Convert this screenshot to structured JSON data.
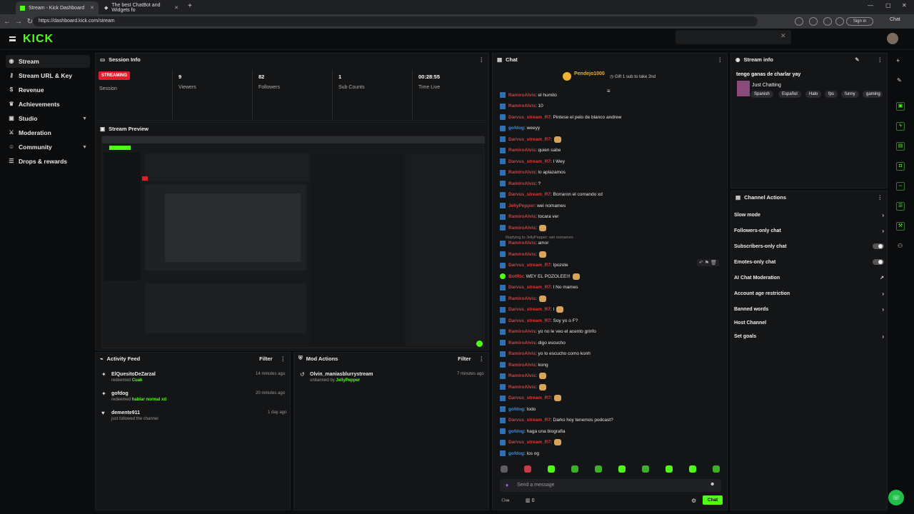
{
  "browser": {
    "tabs": [
      {
        "label": "Stream - Kick Dashboard"
      },
      {
        "label": "The best ChatBot and Widgets fo"
      }
    ],
    "url": "https://dashboard.kick.com/stream",
    "signin": "Sign in",
    "chat_btn": "Chat"
  },
  "sidebar": {
    "items": [
      {
        "label": "Stream",
        "icon": "cast-icon"
      },
      {
        "label": "Stream URL & Key",
        "icon": "key-icon"
      },
      {
        "label": "Revenue",
        "icon": "dollar-icon"
      },
      {
        "label": "Achievements",
        "icon": "trophy-icon"
      },
      {
        "label": "Studio",
        "icon": "studio-icon"
      },
      {
        "label": "Moderation",
        "icon": "sword-icon"
      },
      {
        "label": "Community",
        "icon": "users-icon"
      },
      {
        "label": "Drops & rewards",
        "icon": "gift-icon"
      }
    ]
  },
  "logo": "KICK",
  "session": {
    "title": "Session Info",
    "status": "STREAMING",
    "status_label": "Session",
    "stats": [
      {
        "value": "9",
        "label": "Viewers"
      },
      {
        "value": "82",
        "label": "Followers"
      },
      {
        "value": "1",
        "label": "Sub Counts"
      },
      {
        "value": "00:28:55",
        "label": "Time Live"
      }
    ]
  },
  "preview": {
    "title": "Stream Preview"
  },
  "activity": {
    "title": "Activity Feed",
    "filter": "Filter",
    "items": [
      {
        "name": "ElQuesitoDeZarzal",
        "sub": "redeemed",
        "hl": "Cuak",
        "time": "14 minutes ago"
      },
      {
        "name": "gofdog",
        "sub": "redeemed",
        "hl": "hablar normal xd",
        "time": "20 minutes ago"
      },
      {
        "name": "demente911",
        "sub": "just followed the channel",
        "hl": "",
        "time": "1 day ago"
      }
    ]
  },
  "modactions": {
    "title": "Mod Actions",
    "filter": "Filter",
    "items": [
      {
        "name": "Olvin_maniasblurrystream",
        "sub": "unbanned by",
        "hl": "JellyPepper",
        "time": "7 minutes ago"
      }
    ]
  },
  "chat": {
    "title": "Chat",
    "goal_user": "Pendejo1000",
    "goal_text": "Gift 1 sub to take 2nd",
    "reply_note": "Replying to JellyPepper: wei nomames",
    "input_placeholder": "Send a message",
    "send": "Chat",
    "count": "0",
    "messages": [
      {
        "u": "RamiroAlvis",
        "c": "#e03a3a",
        "t": ": el humito"
      },
      {
        "u": "RamiroAlvis",
        "c": "#e03a3a",
        "t": ": 10"
      },
      {
        "u": "Darvus_stream_R7",
        "c": "#e03a3a",
        "t": ": Pintese el pelo de blanco andrew"
      },
      {
        "u": "gofdog",
        "c": "#3a8be0",
        "t": ": weeyy"
      },
      {
        "u": "Darvus_stream_R7",
        "c": "#e03a3a",
        "t": ": ",
        "e": true
      },
      {
        "u": "RamiroAlvis",
        "c": "#e03a3a",
        "t": ": quien sabe"
      },
      {
        "u": "Darvus_stream_R7",
        "c": "#e03a3a",
        "t": ": I Wey"
      },
      {
        "u": "RamiroAlvis",
        "c": "#e03a3a",
        "t": ": lo aplazamos"
      },
      {
        "u": "RamiroAlvis",
        "c": "#e03a3a",
        "t": ": ?"
      },
      {
        "u": "Darvus_stream_R7",
        "c": "#e03a3a",
        "t": ": Borraron el comando xd"
      },
      {
        "u": "JellyPepper",
        "c": "#e03a3a",
        "t": ": wei nomames"
      },
      {
        "u": "RamiroAlvis",
        "c": "#e03a3a",
        "t": ": tocara ver"
      },
      {
        "u": "RamiroAlvis",
        "c": "#e03a3a",
        "t": ": ",
        "e": true
      },
      {
        "u": "RamiroAlvis",
        "c": "#e03a3a",
        "t": ": amor"
      },
      {
        "u": "RamiroAlvis",
        "c": "#e03a3a",
        "t": ": ",
        "e": true
      },
      {
        "u": "Darvus_stream_R7",
        "c": "#e03a3a",
        "t": ": Ipozole"
      },
      {
        "u": "BotRix",
        "c": "#e03a3a",
        "t": ": WEY EL POZOLEE!!!",
        "e": true
      },
      {
        "u": "Darvus_stream_R7",
        "c": "#e03a3a",
        "t": ": I No mames"
      },
      {
        "u": "RamiroAlvis",
        "c": "#e03a3a",
        "t": ": ",
        "e": true
      },
      {
        "u": "Darvus_stream_R7",
        "c": "#e03a3a",
        "t": ": I ",
        "e": true
      },
      {
        "u": "Darvus_stream_R7",
        "c": "#e03a3a",
        "t": ": Soy yo o F?"
      },
      {
        "u": "RamiroAlvis",
        "c": "#e03a3a",
        "t": ": yo no le veo el acento grinfo"
      },
      {
        "u": "RamiroAlvis",
        "c": "#e03a3a",
        "t": ": digo escucho"
      },
      {
        "u": "RamiroAlvis",
        "c": "#e03a3a",
        "t": ": yo lo escucho como konh"
      },
      {
        "u": "RamiroAlvis",
        "c": "#e03a3a",
        "t": ": kong"
      },
      {
        "u": "RamiroAlvis",
        "c": "#e03a3a",
        "t": ": ",
        "e": true
      },
      {
        "u": "RamiroAlvis",
        "c": "#e03a3a",
        "t": ": ",
        "e": true
      },
      {
        "u": "Darvus_stream_R7",
        "c": "#e03a3a",
        "t": ": ",
        "e": true
      },
      {
        "u": "gofdog",
        "c": "#3a8be0",
        "t": ": todo"
      },
      {
        "u": "Darvus_stream_R7",
        "c": "#e03a3a",
        "t": ": Darks hoy tenemos podcast?"
      },
      {
        "u": "gofdog",
        "c": "#3a8be0",
        "t": ": haga una biografia"
      },
      {
        "u": "Darvus_stream_R7",
        "c": "#e03a3a",
        "t": ": ",
        "e": true
      },
      {
        "u": "gofdog",
        "c": "#3a8be0",
        "t": ": los og"
      }
    ]
  },
  "streaminfo": {
    "title": "Stream info",
    "stream_title": "tengo ganas de charlar yay",
    "category": "Just Chatting",
    "tags": [
      "Spanish",
      "Español",
      "Halo",
      "fps",
      "funny",
      "gaming"
    ]
  },
  "channel_actions": {
    "title": "Channel Actions",
    "items": [
      {
        "label": "Slow mode",
        "ctrl": "chevron"
      },
      {
        "label": "Followers-only chat",
        "ctrl": "chevron"
      },
      {
        "label": "Subscribers-only chat",
        "ctrl": "toggle"
      },
      {
        "label": "Emotes-only chat",
        "ctrl": "toggle"
      },
      {
        "label": "AI Chat Moderation",
        "ctrl": "ext"
      },
      {
        "label": "Account age restriction",
        "ctrl": "chevron"
      },
      {
        "label": "Banned words",
        "ctrl": "chevron"
      },
      {
        "label": "Host Channel",
        "ctrl": "none"
      },
      {
        "label": "Set goals",
        "ctrl": "chevron"
      }
    ]
  },
  "colors": {
    "accent": "#53fc18",
    "live": "#e21d2b"
  }
}
